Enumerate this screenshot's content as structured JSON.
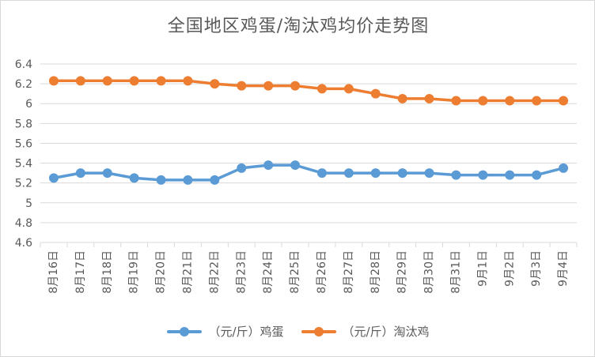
{
  "chart_data": {
    "type": "line",
    "title": "全国地区鸡蛋/淘汰鸡均价走势图",
    "xlabel": "",
    "ylabel": "",
    "ylim": [
      4.6,
      6.4
    ],
    "yticks": [
      "4.6",
      "4.8",
      "5",
      "5.2",
      "5.4",
      "5.6",
      "5.8",
      "6",
      "6.2",
      "6.4"
    ],
    "grid": true,
    "legend_position": "bottom",
    "categories": [
      "8月16日",
      "8月17日",
      "8月18日",
      "8月19日",
      "8月20日",
      "8月21日",
      "8月22日",
      "8月23日",
      "8月24日",
      "8月25日",
      "8月26日",
      "8月27日",
      "8月28日",
      "8月29日",
      "8月30日",
      "8月31日",
      "9月1日",
      "9月2日",
      "9月3日",
      "9月4日"
    ],
    "series": [
      {
        "name": "（元/斤）鸡蛋",
        "color": "#5b9bd5",
        "values": [
          5.25,
          5.3,
          5.3,
          5.25,
          5.23,
          5.23,
          5.23,
          5.35,
          5.38,
          5.38,
          5.3,
          5.3,
          5.3,
          5.3,
          5.3,
          5.28,
          5.28,
          5.28,
          5.28,
          5.35
        ]
      },
      {
        "name": "（元/斤）淘汰鸡",
        "color": "#ed7d31",
        "values": [
          6.23,
          6.23,
          6.23,
          6.23,
          6.23,
          6.23,
          6.2,
          6.18,
          6.18,
          6.18,
          6.15,
          6.15,
          6.1,
          6.05,
          6.05,
          6.03,
          6.03,
          6.03,
          6.03,
          6.03
        ]
      }
    ]
  }
}
